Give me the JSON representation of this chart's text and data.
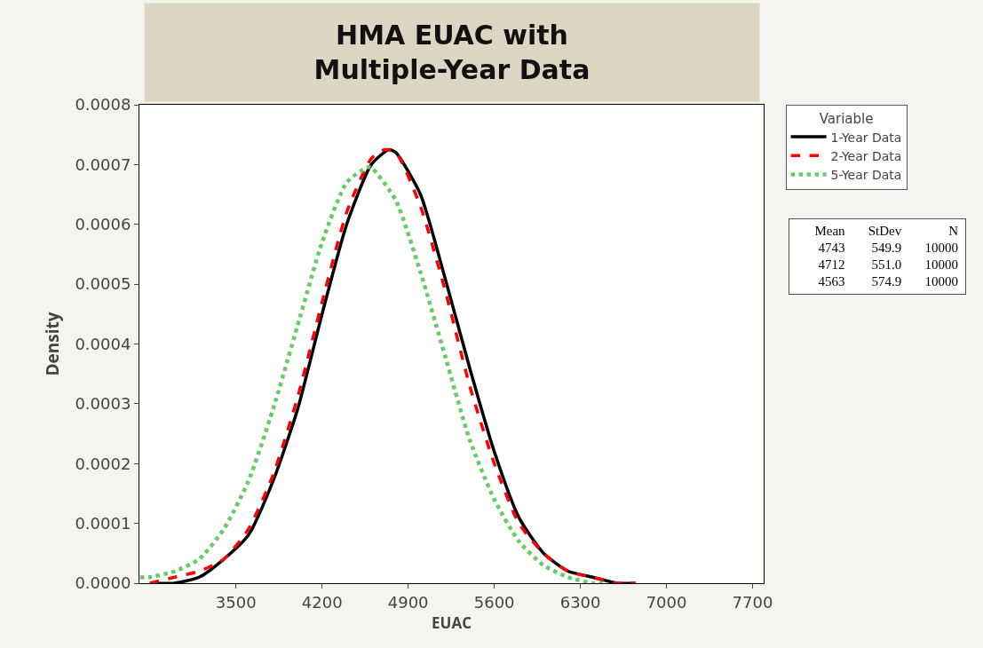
{
  "chart_data": {
    "type": "line",
    "title": "HMA EUAC with\nMultiple-Year Data",
    "xlabel": "EUAC",
    "ylabel": "Density",
    "legend_title": "Variable",
    "legend": "top right",
    "grid": false,
    "xlim": [
      2715,
      7790
    ],
    "xticks": [
      3500,
      4200,
      4900,
      5600,
      6300,
      7000,
      7700
    ],
    "ylim": [
      0,
      0.0008
    ],
    "yticks": [
      {
        "value": 0,
        "label": "0.0000"
      },
      {
        "value": 0.0001,
        "label": "0.0001"
      },
      {
        "value": 0.0002,
        "label": "0.0002"
      },
      {
        "value": 0.0003,
        "label": "0.0003"
      },
      {
        "value": 0.0004,
        "label": "0.0004"
      },
      {
        "value": 0.0005,
        "label": "0.0005"
      },
      {
        "value": 0.0006,
        "label": "0.0006"
      },
      {
        "value": 0.0007,
        "label": "0.0007"
      },
      {
        "value": 0.0008,
        "label": "0.0008"
      }
    ],
    "series": [
      {
        "name": "1-Year Data",
        "color": "#000000",
        "line_style": "solid",
        "x": [
          2800,
          3000,
          3200,
          3400,
          3600,
          3800,
          4000,
          4200,
          4400,
          4600,
          4743,
          4800,
          5000,
          5200,
          5400,
          5600,
          5800,
          6000,
          6200,
          6400,
          6600,
          6750
        ],
        "values": [
          0,
          0,
          1e-05,
          4e-05,
          8e-05,
          0.00017,
          0.00029,
          0.00045,
          0.0006,
          0.0007,
          0.000725,
          0.00072,
          0.00065,
          0.00051,
          0.00036,
          0.00022,
          0.00011,
          5e-05,
          2e-05,
          1e-05,
          0,
          0
        ]
      },
      {
        "name": "2-Year Data",
        "color": "#ff0000",
        "line_style": "dashed",
        "x": [
          2800,
          3000,
          3200,
          3400,
          3600,
          3800,
          4000,
          4200,
          4400,
          4600,
          4712,
          4800,
          5000,
          5200,
          5400,
          5600,
          5800,
          6000,
          6200,
          6400,
          6600,
          6750
        ],
        "values": [
          0,
          1e-05,
          2e-05,
          4e-05,
          9e-05,
          0.00018,
          0.00031,
          0.00047,
          0.00062,
          0.00071,
          0.000725,
          0.00072,
          0.00063,
          0.00049,
          0.00033,
          0.0002,
          0.0001,
          5e-05,
          2e-05,
          1e-05,
          0,
          0
        ]
      },
      {
        "name": "5-Year Data",
        "color": "#66cc66",
        "line_style": "dotted",
        "x": [
          2720,
          2800,
          3000,
          3200,
          3400,
          3600,
          3800,
          4000,
          4200,
          4400,
          4563,
          4600,
          4800,
          5000,
          5200,
          5400,
          5600,
          5800,
          6000,
          6200,
          6400,
          6500
        ],
        "values": [
          1e-05,
          1e-05,
          2e-05,
          4e-05,
          9e-05,
          0.00017,
          0.00029,
          0.00043,
          0.00057,
          0.00067,
          0.000695,
          0.000695,
          0.00064,
          0.00052,
          0.00038,
          0.00024,
          0.00014,
          7e-05,
          3e-05,
          1e-05,
          0,
          0
        ]
      }
    ],
    "annotations": [
      "Mean StDev N",
      "4743 549.9 10000",
      "4712 551.0 10000",
      "4563 574.9 10000"
    ]
  }
}
